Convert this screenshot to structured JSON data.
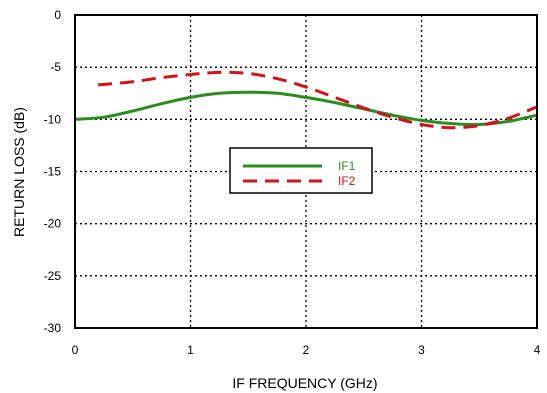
{
  "chart_data": {
    "type": "line",
    "xlabel": "IF FREQUENCY (GHz)",
    "ylabel": "RETURN LOSS (dB)",
    "xlim": [
      0,
      4
    ],
    "ylim": [
      -30,
      0
    ],
    "x_ticks": [
      0,
      1,
      2,
      3,
      4
    ],
    "y_ticks": [
      0,
      -5,
      -10,
      -15,
      -20,
      -25,
      -30
    ],
    "grid": true,
    "legend_position": "center",
    "series": [
      {
        "name": "IF1",
        "color": "#2e8b22",
        "style": "solid",
        "x": [
          0,
          0.25,
          0.5,
          0.75,
          1.0,
          1.25,
          1.5,
          1.75,
          2.0,
          2.25,
          2.5,
          2.75,
          3.0,
          3.25,
          3.5,
          3.75,
          4.0
        ],
        "y": [
          -10.0,
          -9.8,
          -9.2,
          -8.5,
          -7.9,
          -7.5,
          -7.4,
          -7.5,
          -7.9,
          -8.4,
          -9.0,
          -9.6,
          -10.1,
          -10.4,
          -10.5,
          -10.2,
          -9.6
        ]
      },
      {
        "name": "IF2",
        "color": "#c8161d",
        "style": "dashed",
        "x": [
          0.2,
          0.5,
          0.75,
          1.0,
          1.25,
          1.5,
          1.75,
          2.0,
          2.25,
          2.5,
          2.75,
          3.0,
          3.25,
          3.5,
          3.75,
          4.0
        ],
        "y": [
          -6.7,
          -6.4,
          -6.0,
          -5.7,
          -5.5,
          -5.6,
          -6.1,
          -6.9,
          -7.9,
          -8.9,
          -9.8,
          -10.5,
          -10.8,
          -10.6,
          -9.9,
          -8.8
        ]
      }
    ]
  }
}
